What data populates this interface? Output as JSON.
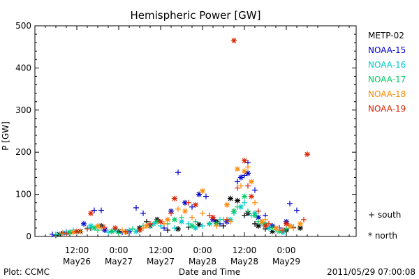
{
  "chart_data": {
    "type": "scatter",
    "title": "Hemispheric Power [GW]",
    "xlabel": "Date and Time",
    "ylabel": "P [GW]",
    "ylim": [
      0,
      500
    ],
    "xlim": [
      0,
      92
    ],
    "x_units": "hours since 2011-05-26 00:00 UT",
    "yticks": [
      0,
      100,
      200,
      300,
      400,
      500
    ],
    "xticks": [
      {
        "x": 12,
        "time": "12:00",
        "date": "May26"
      },
      {
        "x": 24,
        "time": "0:00",
        "date": "May27"
      },
      {
        "x": 36,
        "time": "12:00",
        "date": "May27"
      },
      {
        "x": 48,
        "time": "0:00",
        "date": "May28"
      },
      {
        "x": 60,
        "time": "12:00",
        "date": "May28"
      },
      {
        "x": 72,
        "time": "0:00",
        "date": "May29"
      }
    ],
    "grid": false,
    "legend_position": "right",
    "series": [
      {
        "name": "METP-02",
        "color": "#000000",
        "south": [
          [
            6,
            3
          ],
          [
            10,
            8
          ],
          [
            16,
            20
          ],
          [
            22,
            12
          ],
          [
            26,
            10
          ],
          [
            32,
            35
          ],
          [
            38,
            15
          ],
          [
            44,
            22
          ],
          [
            50,
            30
          ],
          [
            54,
            25
          ],
          [
            57,
            60
          ],
          [
            60,
            50
          ],
          [
            63,
            30
          ],
          [
            66,
            18
          ],
          [
            70,
            15
          ],
          [
            74,
            22
          ]
        ],
        "north": [
          [
            7,
            5
          ],
          [
            13,
            12
          ],
          [
            19,
            25
          ],
          [
            24,
            12
          ],
          [
            30,
            20
          ],
          [
            35,
            40
          ],
          [
            41,
            18
          ],
          [
            47,
            28
          ],
          [
            52,
            35
          ],
          [
            56,
            90
          ],
          [
            58,
            85
          ],
          [
            61,
            55
          ],
          [
            64,
            25
          ],
          [
            68,
            12
          ],
          [
            72,
            15
          ],
          [
            76,
            20
          ]
        ]
      },
      {
        "name": "NOAA-15",
        "color": "#0000cc",
        "south": [
          [
            5,
            5
          ],
          [
            9,
            10
          ],
          [
            17,
            62
          ],
          [
            19,
            62
          ],
          [
            25,
            10
          ],
          [
            29,
            68
          ],
          [
            31,
            55
          ],
          [
            37,
            20
          ],
          [
            41,
            152
          ],
          [
            45,
            70
          ],
          [
            49,
            95
          ],
          [
            53,
            30
          ],
          [
            58,
            130
          ],
          [
            60,
            145
          ],
          [
            61,
            175
          ],
          [
            63,
            110
          ],
          [
            66,
            50
          ],
          [
            70,
            20
          ],
          [
            73,
            78
          ],
          [
            75,
            62
          ]
        ],
        "north": [
          [
            8,
            8
          ],
          [
            14,
            30
          ],
          [
            20,
            15
          ],
          [
            27,
            12
          ],
          [
            33,
            25
          ],
          [
            39,
            60
          ],
          [
            43,
            80
          ],
          [
            47,
            100
          ],
          [
            51,
            40
          ],
          [
            55,
            35
          ],
          [
            59,
            140
          ],
          [
            61,
            150
          ],
          [
            64,
            45
          ],
          [
            68,
            25
          ],
          [
            72,
            35
          ]
        ]
      },
      {
        "name": "NOAA-16",
        "color": "#00cccc",
        "south": [
          [
            6,
            5
          ],
          [
            11,
            15
          ],
          [
            15,
            20
          ],
          [
            21,
            10
          ],
          [
            27,
            15
          ],
          [
            31,
            25
          ],
          [
            36,
            25
          ],
          [
            40,
            20
          ],
          [
            44,
            30
          ],
          [
            48,
            25
          ],
          [
            53,
            40
          ],
          [
            57,
            55
          ],
          [
            60,
            80
          ],
          [
            62,
            50
          ],
          [
            65,
            30
          ],
          [
            69,
            15
          ],
          [
            73,
            25
          ]
        ],
        "north": [
          [
            9,
            8
          ],
          [
            16,
            25
          ],
          [
            23,
            15
          ],
          [
            29,
            12
          ],
          [
            34,
            30
          ],
          [
            42,
            35
          ],
          [
            46,
            20
          ],
          [
            50,
            30
          ],
          [
            56,
            40
          ],
          [
            59,
            70
          ],
          [
            63,
            55
          ],
          [
            67,
            20
          ],
          [
            71,
            10
          ]
        ]
      },
      {
        "name": "NOAA-17",
        "color": "#00cc66",
        "south": [
          [
            7,
            5
          ],
          [
            12,
            10
          ],
          [
            18,
            15
          ],
          [
            24,
            8
          ],
          [
            28,
            18
          ],
          [
            33,
            25
          ],
          [
            38,
            30
          ],
          [
            42,
            45
          ],
          [
            46,
            35
          ],
          [
            50,
            30
          ],
          [
            54,
            40
          ],
          [
            58,
            70
          ],
          [
            61,
            60
          ],
          [
            64,
            35
          ],
          [
            68,
            20
          ],
          [
            72,
            18
          ]
        ],
        "north": [
          [
            10,
            10
          ],
          [
            17,
            20
          ],
          [
            22,
            12
          ],
          [
            30,
            15
          ],
          [
            35,
            35
          ],
          [
            40,
            40
          ],
          [
            45,
            25
          ],
          [
            52,
            30
          ],
          [
            57,
            60
          ],
          [
            60,
            95
          ],
          [
            63,
            50
          ],
          [
            66,
            30
          ],
          [
            70,
            12
          ]
        ]
      },
      {
        "name": "NOAA-18",
        "color": "#ff8800",
        "south": [
          [
            8,
            8
          ],
          [
            13,
            12
          ],
          [
            19,
            20
          ],
          [
            25,
            15
          ],
          [
            31,
            20
          ],
          [
            37,
            30
          ],
          [
            41,
            65
          ],
          [
            45,
            45
          ],
          [
            48,
            55
          ],
          [
            52,
            25
          ],
          [
            56,
            35
          ],
          [
            59,
            120
          ],
          [
            61,
            165
          ],
          [
            63,
            80
          ],
          [
            66,
            40
          ],
          [
            70,
            15
          ],
          [
            74,
            20
          ]
        ],
        "north": [
          [
            11,
            10
          ],
          [
            18,
            25
          ],
          [
            26,
            10
          ],
          [
            32,
            25
          ],
          [
            38,
            40
          ],
          [
            43,
            60
          ],
          [
            48,
            108
          ],
          [
            55,
            75
          ],
          [
            58,
            160
          ],
          [
            60,
            155
          ],
          [
            62,
            130
          ],
          [
            65,
            35
          ],
          [
            69,
            20
          ],
          [
            73,
            25
          ],
          [
            76,
            30
          ]
        ]
      },
      {
        "name": "NOAA-19",
        "color": "#dd2200",
        "south": [
          [
            9,
            6
          ],
          [
            15,
            18
          ],
          [
            20,
            22
          ],
          [
            26,
            12
          ],
          [
            33,
            30
          ],
          [
            39,
            55
          ],
          [
            44,
            80
          ],
          [
            50,
            50
          ],
          [
            55,
            40
          ],
          [
            58,
            115
          ],
          [
            61,
            120
          ],
          [
            64,
            60
          ],
          [
            67,
            30
          ],
          [
            71,
            15
          ],
          [
            77,
            40
          ]
        ],
        "north": [
          [
            12,
            12
          ],
          [
            16,
            55
          ],
          [
            23,
            20
          ],
          [
            30,
            15
          ],
          [
            36,
            35
          ],
          [
            40,
            90
          ],
          [
            46,
            75
          ],
          [
            51,
            45
          ],
          [
            57,
            465
          ],
          [
            60,
            180
          ],
          [
            62,
            95
          ],
          [
            66,
            25
          ],
          [
            72,
            30
          ],
          [
            78,
            195
          ]
        ]
      }
    ],
    "legend_markers": [
      {
        "symbol": "+",
        "label": "south"
      },
      {
        "symbol": "*",
        "label": "north"
      }
    ],
    "footer_left": "Plot: CCMC",
    "footer_right": "2011/05/29 07:00:08"
  }
}
